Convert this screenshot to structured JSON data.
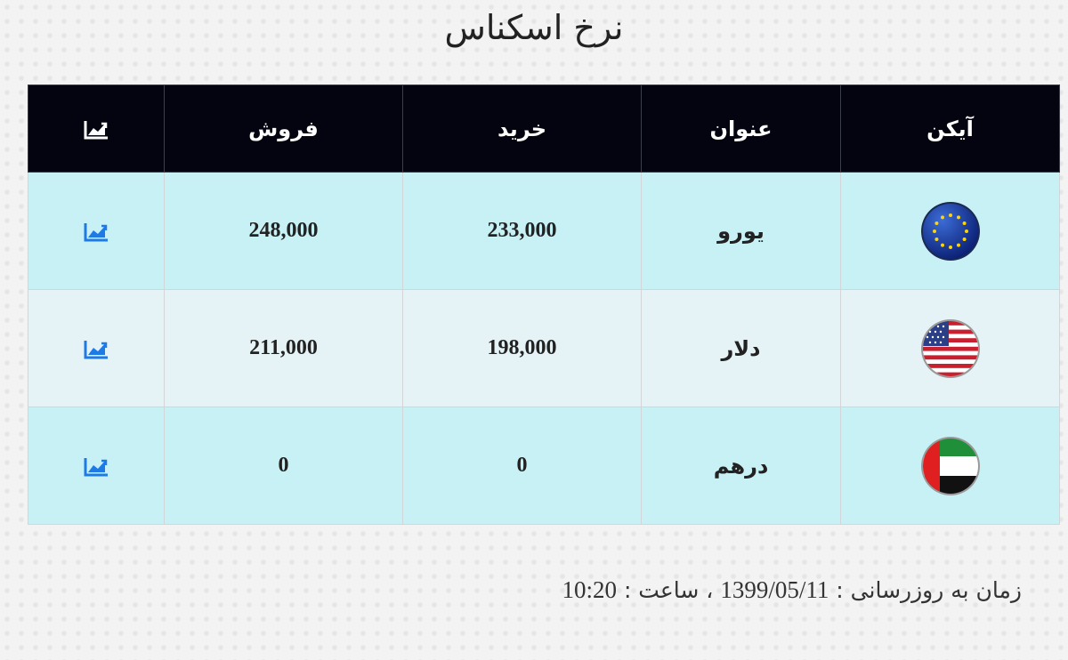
{
  "title": "نرخ اسکناس",
  "table": {
    "headers": {
      "icon": "آیکن",
      "name": "عنوان",
      "buy": "خرید",
      "sell": "فروش",
      "chart_icon": "chart-line-icon"
    },
    "rows": [
      {
        "flag": "eu-flag-icon",
        "name": "یورو",
        "buy": "233,000",
        "sell": "248,000"
      },
      {
        "flag": "us-flag-icon",
        "name": "دلار",
        "buy": "198,000",
        "sell": "211,000"
      },
      {
        "flag": "uae-flag-icon",
        "name": "درهم",
        "buy": "0",
        "sell": "0"
      }
    ]
  },
  "footer": {
    "label": "زمان به روزرسانی :",
    "date": "1399/05/11",
    "sep": "، ساعت :",
    "time": "10:20"
  },
  "colors": {
    "header_bg": "#03040f",
    "row_odd": "#c8f1f6",
    "row_even": "#e6f3f6",
    "chart_icon_accent": "#1e7be6"
  }
}
